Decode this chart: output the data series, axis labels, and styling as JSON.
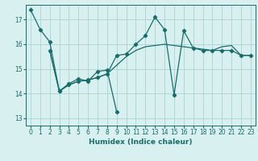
{
  "xlabel": "Humidex (Indice chaleur)",
  "background_color": "#d8f0f0",
  "grid_color": "#b0d8d8",
  "line_color": "#1a6b6b",
  "xlim": [
    -0.5,
    23.5
  ],
  "ylim": [
    12.7,
    17.6
  ],
  "yticks": [
    13,
    14,
    15,
    16,
    17
  ],
  "xticks": [
    0,
    1,
    2,
    3,
    4,
    5,
    6,
    7,
    8,
    9,
    10,
    11,
    12,
    13,
    14,
    15,
    16,
    17,
    18,
    19,
    20,
    21,
    22,
    23
  ],
  "series1_x": [
    0,
    1,
    2,
    3,
    4,
    5,
    6,
    7,
    8,
    9
  ],
  "series1_y": [
    17.4,
    16.6,
    16.1,
    14.1,
    14.4,
    14.6,
    14.5,
    14.9,
    14.95,
    13.25
  ],
  "series2_x": [
    2,
    3,
    4,
    5,
    6,
    7,
    8,
    9,
    10,
    11,
    12,
    13,
    14,
    15,
    16,
    17,
    18,
    19,
    20,
    21,
    22,
    23
  ],
  "series2_y": [
    15.75,
    14.1,
    14.35,
    14.5,
    14.55,
    14.65,
    14.8,
    15.55,
    15.6,
    16.0,
    16.35,
    17.1,
    16.6,
    13.95,
    16.55,
    15.85,
    15.75,
    15.75,
    15.75,
    15.75,
    15.55,
    15.55
  ],
  "series3_x": [
    2,
    3,
    4,
    5,
    6,
    7,
    8,
    10,
    11,
    12,
    13,
    14,
    15,
    16,
    17,
    18,
    19,
    20,
    21,
    22,
    23
  ],
  "series3_y": [
    15.75,
    14.1,
    14.35,
    14.5,
    14.55,
    14.65,
    14.8,
    15.5,
    15.75,
    15.9,
    15.95,
    16.0,
    15.95,
    15.9,
    15.85,
    15.8,
    15.75,
    15.9,
    15.95,
    15.55,
    15.55
  ],
  "tick_fontsize": 5.5,
  "xlabel_fontsize": 6.5,
  "lw": 0.9,
  "ms": 2.2
}
